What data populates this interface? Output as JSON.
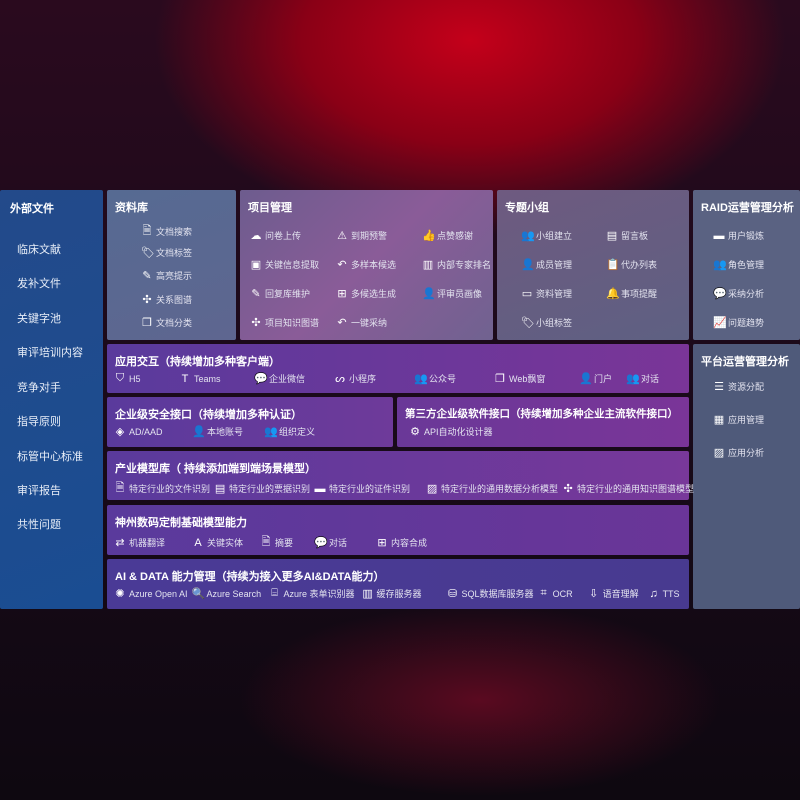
{
  "sidebar": {
    "title": "外部文件",
    "items": [
      "临床文献",
      "发补文件",
      "关键字池",
      "审评培训内容",
      "竞争对手",
      "指导原则",
      "标管中心标准",
      "审评报告",
      "共性问题"
    ]
  },
  "panels": [
    {
      "id": "library",
      "title": "资料库",
      "items": [
        {
          "icon": "document-search-icon",
          "glyph": "🗎",
          "label": "文档搜索"
        },
        {
          "icon": "tag-icon",
          "glyph": "🏷",
          "label": "文档标签"
        },
        {
          "icon": "highlight-pen-icon",
          "glyph": "✎",
          "label": "高亮提示"
        },
        {
          "icon": "graph-icon",
          "glyph": "✣",
          "label": "关系图谱"
        },
        {
          "icon": "document-stack-icon",
          "glyph": "❐",
          "label": "文档分类"
        }
      ]
    },
    {
      "id": "project",
      "title": "项目管理",
      "items": [
        {
          "icon": "cloud-upload-icon",
          "glyph": "☁",
          "label": "问卷上传"
        },
        {
          "icon": "alarm-icon",
          "glyph": "⚠",
          "label": "到期预警"
        },
        {
          "icon": "thumbs-up-icon",
          "glyph": "👍",
          "label": "点赞感谢"
        },
        {
          "icon": "window-icon",
          "glyph": "▣",
          "label": "关键信息提取"
        },
        {
          "icon": "reply-icon",
          "glyph": "↶",
          "label": "多样本候选"
        },
        {
          "icon": "ranking-icon",
          "glyph": "▥",
          "label": "内部专家排名"
        },
        {
          "icon": "edit-icon",
          "glyph": "✎",
          "label": "回复库维护"
        },
        {
          "icon": "puzzle-icon",
          "glyph": "⊞",
          "label": "多候选生成"
        },
        {
          "icon": "user-icon",
          "glyph": "👤",
          "label": "评审员画像"
        },
        {
          "icon": "graph-icon",
          "glyph": "✣",
          "label": "项目知识图谱"
        },
        {
          "icon": "reply-icon",
          "glyph": "↶",
          "label": "一键采纳"
        }
      ]
    },
    {
      "id": "group",
      "title": "专题小组",
      "items": [
        {
          "icon": "users-icon",
          "glyph": "👥",
          "label": "小组建立"
        },
        {
          "icon": "bbs-icon",
          "glyph": "▤",
          "label": "留言板"
        },
        {
          "icon": "user-add-icon",
          "glyph": "👤",
          "label": "成员管理"
        },
        {
          "icon": "clipboard-icon",
          "glyph": "📋",
          "label": "代办列表"
        },
        {
          "icon": "folder-icon",
          "glyph": "▭",
          "label": "资料管理"
        },
        {
          "icon": "bell-icon",
          "glyph": "🔔",
          "label": "事项提醒"
        },
        {
          "icon": "tag-icon",
          "glyph": "🏷",
          "label": "小组标签"
        }
      ]
    },
    {
      "id": "raid",
      "title": "RAID运营管理分析",
      "items": [
        {
          "icon": "id-card-icon",
          "glyph": "▬",
          "label": "用户锻炼"
        },
        {
          "icon": "users-icon",
          "glyph": "👥",
          "label": "角色管理"
        },
        {
          "icon": "qa-icon",
          "glyph": "💬",
          "label": "采纳分析"
        },
        {
          "icon": "trend-chart-icon",
          "glyph": "📈",
          "label": "问题趋势"
        }
      ]
    },
    {
      "id": "platform",
      "title": "平台运营管理分析",
      "items": [
        {
          "icon": "checklist-icon",
          "glyph": "☰",
          "label": "资源分配"
        },
        {
          "icon": "app-grid-icon",
          "glyph": "▦",
          "label": "应用管理"
        },
        {
          "icon": "analytics-icon",
          "glyph": "▨",
          "label": "应用分析"
        }
      ]
    },
    {
      "id": "app",
      "title": "应用交互（持续增加多种客户端）",
      "items": [
        {
          "icon": "html5-icon",
          "glyph": "⛉",
          "label": "H5"
        },
        {
          "icon": "teams-icon",
          "glyph": "T",
          "label": "Teams"
        },
        {
          "icon": "wechat-work-icon",
          "glyph": "💬",
          "label": "企业微信"
        },
        {
          "icon": "mini-program-icon",
          "glyph": "ᔕ",
          "label": "小程序"
        },
        {
          "icon": "official-account-icon",
          "glyph": "👥",
          "label": "公众号"
        },
        {
          "icon": "web-window-icon",
          "glyph": "❐",
          "label": "Web飘窗"
        },
        {
          "icon": "portal-user-icon",
          "glyph": "👤",
          "label": "门户"
        },
        {
          "icon": "chat-users-icon",
          "glyph": "👥",
          "label": "对话"
        }
      ]
    },
    {
      "id": "security",
      "title": "企业级安全接口（持续增加多种认证）",
      "items": [
        {
          "icon": "ad-diamond-icon",
          "glyph": "◈",
          "label": "AD/AAD"
        },
        {
          "icon": "local-account-icon",
          "glyph": "👤",
          "label": "本地账号"
        },
        {
          "icon": "organization-icon",
          "glyph": "👥",
          "label": "组织定义"
        }
      ]
    },
    {
      "id": "thirdparty",
      "title": "第三方企业级软件接口（持续增加多种企业主流软件接口）",
      "items": [
        {
          "icon": "api-gear-icon",
          "glyph": "⚙",
          "label": "API自动化设计器"
        }
      ]
    },
    {
      "id": "industry",
      "title": "产业模型库（ 持续添加端到端场景模型）",
      "items": [
        {
          "icon": "file-icon",
          "glyph": "🗎",
          "label": "特定行业的文件识别"
        },
        {
          "icon": "receipt-icon",
          "glyph": "▤",
          "label": "特定行业的票据识别"
        },
        {
          "icon": "id-card-icon",
          "glyph": "▬",
          "label": "特定行业的证件识别"
        },
        {
          "icon": "data-analysis-icon",
          "glyph": "▨",
          "label": "特定行业的通用数据分析模型"
        },
        {
          "icon": "knowledge-graph-icon",
          "glyph": "✣",
          "label": "特定行业的通用知识图谱模型"
        }
      ]
    },
    {
      "id": "digitalchina",
      "title": "神州数码定制基础模型能力",
      "items": [
        {
          "icon": "translate-icon",
          "glyph": "⇄",
          "label": "机器翻译"
        },
        {
          "icon": "entity-shield-icon",
          "glyph": "A",
          "label": "关键实体"
        },
        {
          "icon": "summary-doc-icon",
          "glyph": "🗎",
          "label": "摘要"
        },
        {
          "icon": "chat-bubble-icon",
          "glyph": "💬",
          "label": "对话"
        },
        {
          "icon": "compose-icon",
          "glyph": "⊞",
          "label": "内容合成"
        }
      ]
    },
    {
      "id": "aidata",
      "title": "AI & DATA 能力管理（持续为接入更多AI&DATA能力）",
      "items": [
        {
          "icon": "openai-icon",
          "glyph": "✺",
          "label": "Azure Open AI"
        },
        {
          "icon": "search-doc-icon",
          "glyph": "🔍",
          "label": "Azure Search"
        },
        {
          "icon": "form-recognizer-icon",
          "glyph": "⌸",
          "label": "Azure 表单识别器"
        },
        {
          "icon": "cache-server-icon",
          "glyph": "▥",
          "label": "缓存服务器"
        },
        {
          "icon": "sql-database-icon",
          "glyph": "⛁",
          "label": "SQL数据库服务器"
        },
        {
          "icon": "ocr-icon",
          "glyph": "⌗",
          "label": "OCR"
        },
        {
          "icon": "speech-icon",
          "glyph": "⇩",
          "label": "语音理解"
        },
        {
          "icon": "tts-icon",
          "glyph": "♫",
          "label": "TTS"
        }
      ]
    }
  ]
}
